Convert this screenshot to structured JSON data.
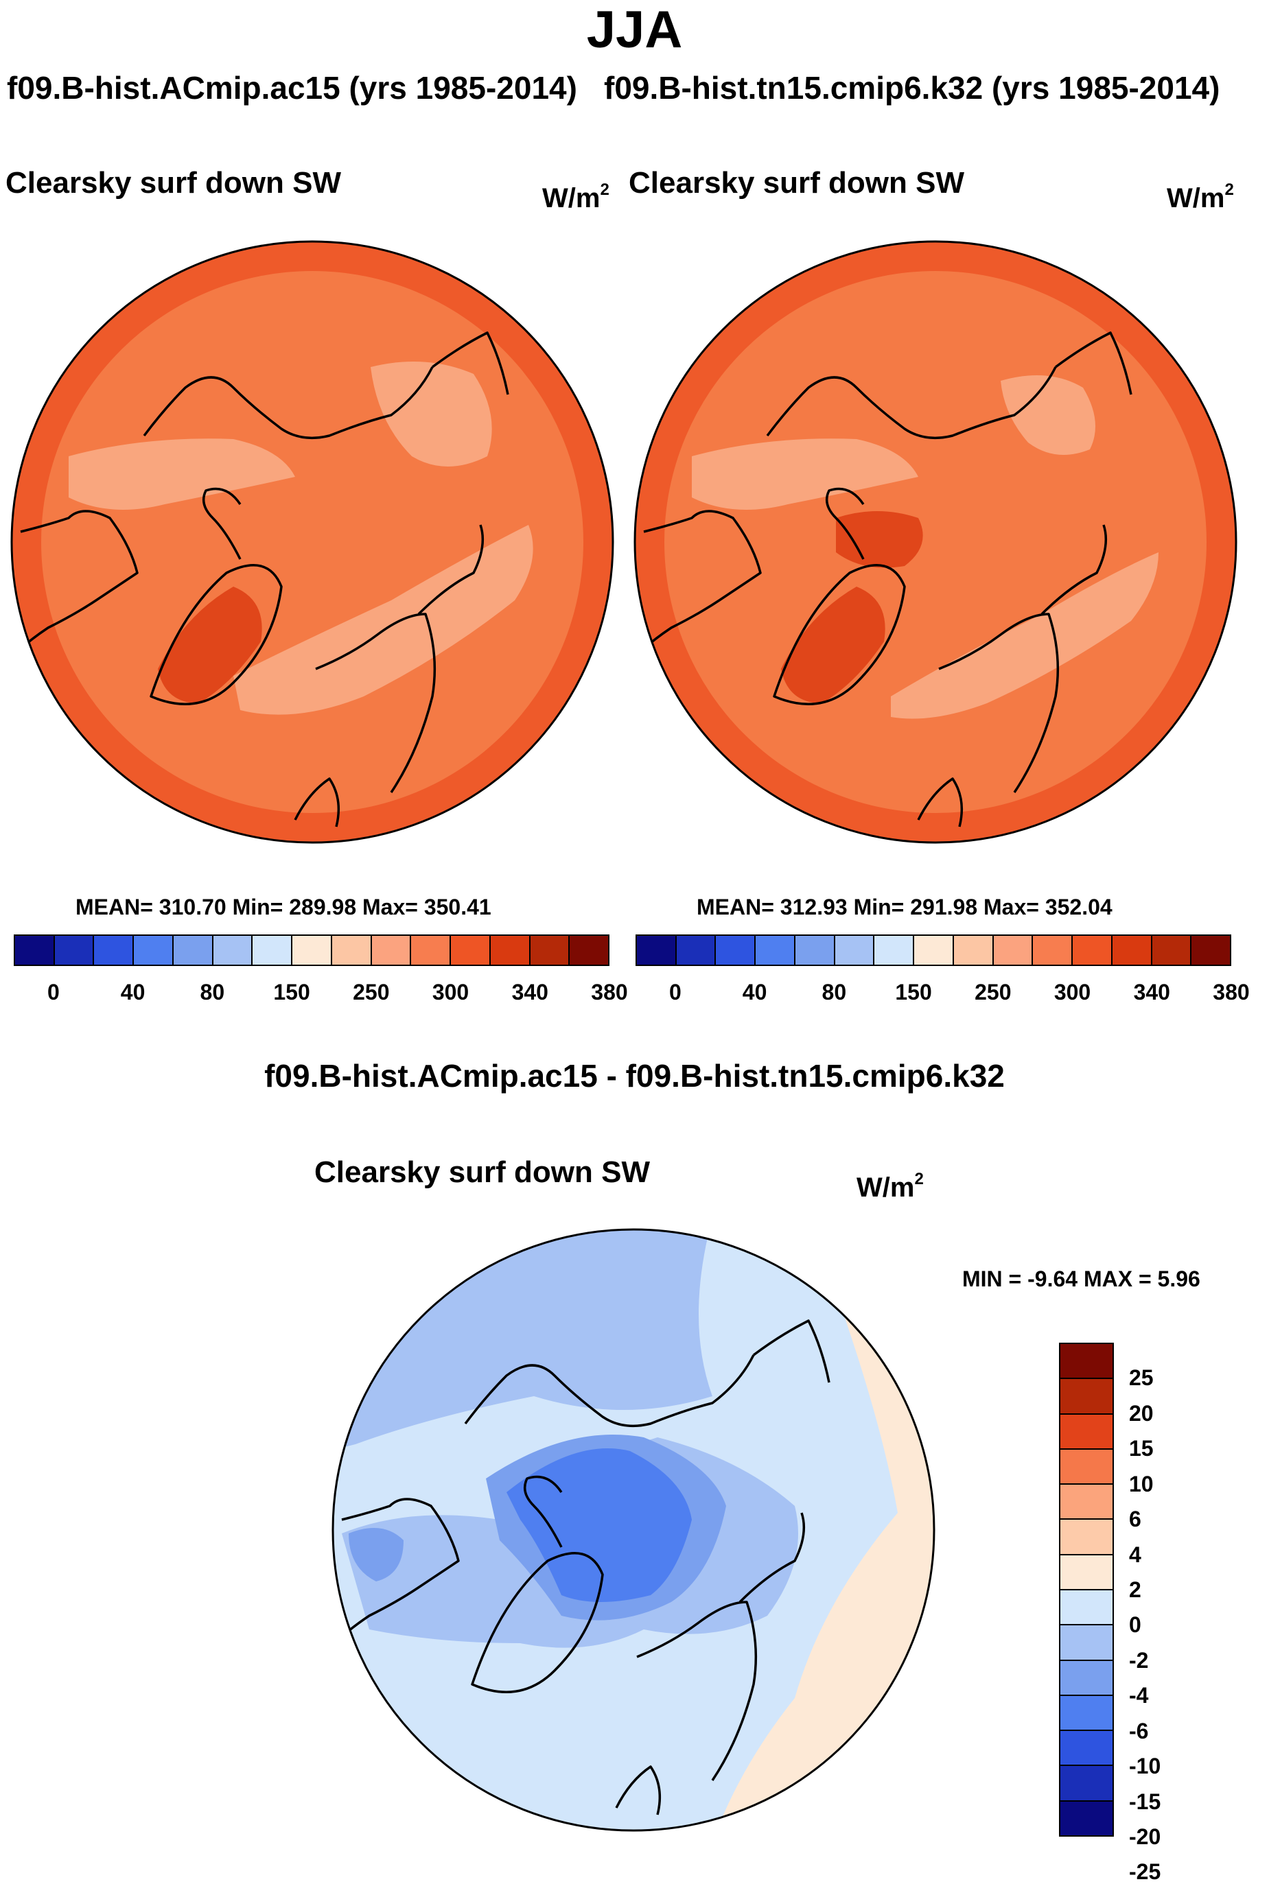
{
  "season": "JJA",
  "left_panel": {
    "case_title": "f09.B-hist.ACmip.ac15 (yrs 1985-2014)",
    "variable": "Clearsky surf down SW",
    "units": "W/m",
    "units_exp": "2",
    "stats": "MEAN= 310.70  Min= 289.98  Max= 350.41"
  },
  "right_panel": {
    "case_title": "f09.B-hist.tn15.cmip6.k32 (yrs 1985-2014)",
    "variable": "Clearsky surf down SW",
    "units": "W/m",
    "units_exp": "2",
    "stats": "MEAN= 312.93  Min= 291.98  Max= 352.04"
  },
  "abs_colorbar": {
    "colors": [
      "#0a0a80",
      "#1a2fb8",
      "#2e54e0",
      "#4f7ff0",
      "#7aa0ee",
      "#a6c2f4",
      "#d2e6fb",
      "#fde9d6",
      "#fcc6a4",
      "#fba37f",
      "#f77d4f",
      "#ee5525",
      "#d93a10",
      "#b42908",
      "#7c0a02"
    ],
    "labels": [
      "0",
      "40",
      "80",
      "150",
      "250",
      "300",
      "340",
      "380"
    ]
  },
  "diff_panel": {
    "title": "f09.B-hist.ACmip.ac15 - f09.B-hist.tn15.cmip6.k32",
    "variable": "Clearsky surf down SW",
    "units": "W/m",
    "units_exp": "2",
    "minmax": "MIN =  -9.64 MAX =   5.96"
  },
  "diff_colorbar": {
    "colors": [
      "#7c0a02",
      "#b42908",
      "#e2431a",
      "#f5784a",
      "#fba47c",
      "#fdcbaa",
      "#fde9d6",
      "#d2e6fb",
      "#a6c2f4",
      "#7aa0ee",
      "#4f7ff0",
      "#2e54e0",
      "#1a2fb8",
      "#0a0a80"
    ],
    "labels": [
      "25",
      "20",
      "15",
      "10",
      "6",
      "4",
      "2",
      "0",
      "-2",
      "-4",
      "-6",
      "-10",
      "-15",
      "-20",
      "-25"
    ]
  },
  "map_colors": {
    "abs_base": "#f47a45",
    "abs_outer": "#ee5a2a",
    "abs_light": "#f9a67e",
    "abs_dark": "#e0461a",
    "diff_base": "#d2e6fb",
    "diff_mid": "#a6c2f4",
    "diff_strong": "#7aa0ee",
    "diff_core": "#4f7ff0",
    "diff_pos": "#fde9d6"
  }
}
